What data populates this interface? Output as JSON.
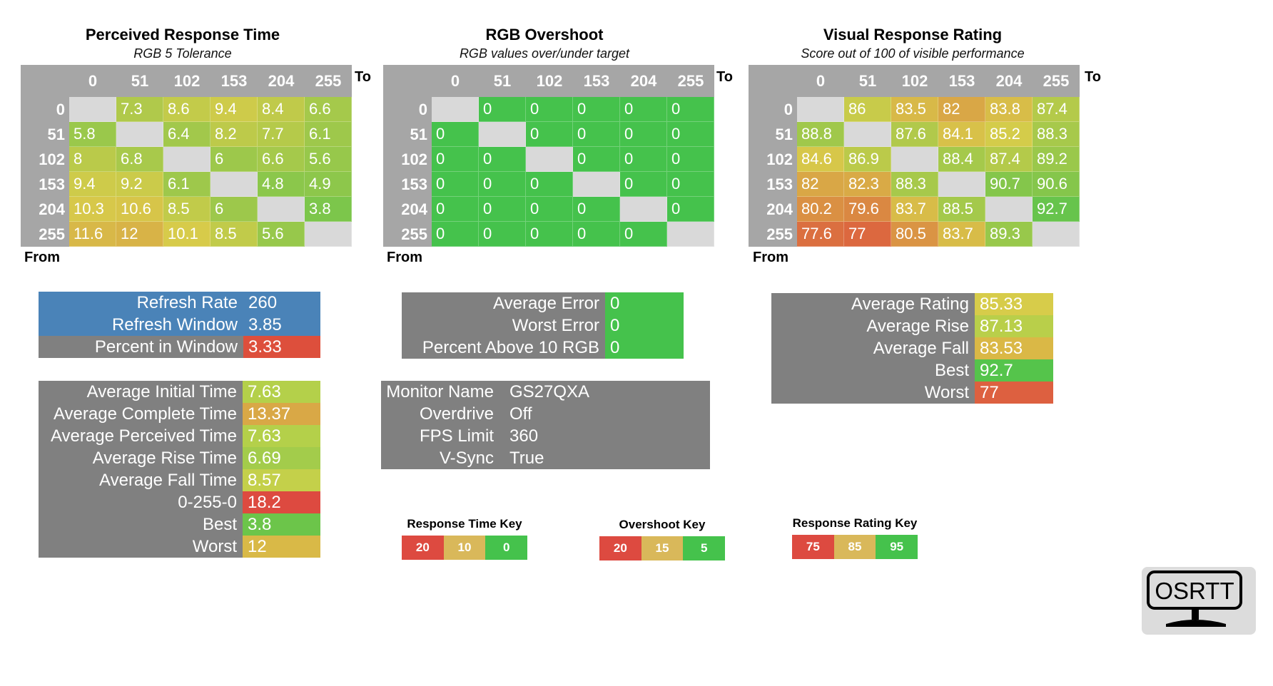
{
  "colors": {
    "heat_low": "#45c24c",
    "heat_mid": "#d7cc4a",
    "heat_high": "#dd4f3c",
    "diagonal": "#d9d9d9",
    "header_bg": "#a6a6a6",
    "panel_bg": "#808080",
    "refresh_blue": "#4a83b8"
  },
  "chart_data": [
    {
      "type": "heatmap",
      "title": "Perceived Response Time",
      "subtitle": "RGB 5 Tolerance",
      "xlabel": "To",
      "ylabel": "From",
      "x": [
        "0",
        "51",
        "102",
        "153",
        "204",
        "255"
      ],
      "y": [
        "0",
        "51",
        "102",
        "153",
        "204",
        "255"
      ],
      "values": [
        [
          "",
          "7.3",
          "8.6",
          "9.4",
          "8.4",
          "6.6"
        ],
        [
          "5.8",
          "",
          "6.4",
          "8.2",
          "7.7",
          "6.1"
        ],
        [
          "8",
          "6.8",
          "",
          "6",
          "6.6",
          "5.6"
        ],
        [
          "9.4",
          "9.2",
          "6.1",
          "",
          "4.8",
          "4.9"
        ],
        [
          "10.3",
          "10.6",
          "8.5",
          "6",
          "",
          "3.8"
        ],
        [
          "11.6",
          "12",
          "10.1",
          "8.5",
          "5.6",
          ""
        ]
      ],
      "color_scale": {
        "good": 0,
        "mid": 10,
        "bad": 20
      }
    },
    {
      "type": "heatmap",
      "title": "RGB Overshoot",
      "subtitle": "RGB values over/under target",
      "xlabel": "To",
      "ylabel": "From",
      "x": [
        "0",
        "51",
        "102",
        "153",
        "204",
        "255"
      ],
      "y": [
        "0",
        "51",
        "102",
        "153",
        "204",
        "255"
      ],
      "values": [
        [
          "",
          "0",
          "0",
          "0",
          "0",
          "0"
        ],
        [
          "0",
          "",
          "0",
          "0",
          "0",
          "0"
        ],
        [
          "0",
          "0",
          "",
          "0",
          "0",
          "0"
        ],
        [
          "0",
          "0",
          "0",
          "",
          "0",
          "0"
        ],
        [
          "0",
          "0",
          "0",
          "0",
          "",
          "0"
        ],
        [
          "0",
          "0",
          "0",
          "0",
          "0",
          ""
        ]
      ],
      "color_scale": {
        "good": 5,
        "mid": 15,
        "bad": 20
      }
    },
    {
      "type": "heatmap",
      "title": "Visual Response Rating",
      "subtitle": "Score out of 100 of visible performance",
      "xlabel": "To",
      "ylabel": "From",
      "x": [
        "0",
        "51",
        "102",
        "153",
        "204",
        "255"
      ],
      "y": [
        "0",
        "51",
        "102",
        "153",
        "204",
        "255"
      ],
      "values": [
        [
          "",
          "86",
          "83.5",
          "82",
          "83.8",
          "87.4"
        ],
        [
          "88.8",
          "",
          "87.6",
          "84.1",
          "85.2",
          "88.3"
        ],
        [
          "84.6",
          "86.9",
          "",
          "88.4",
          "87.4",
          "89.2"
        ],
        [
          "82",
          "82.3",
          "88.3",
          "",
          "90.7",
          "90.6"
        ],
        [
          "80.2",
          "79.6",
          "83.7",
          "88.5",
          "",
          "92.7"
        ],
        [
          "77.6",
          "77",
          "80.5",
          "83.7",
          "89.3",
          ""
        ]
      ],
      "color_scale": {
        "good": 95,
        "mid": 85,
        "bad": 75
      }
    }
  ],
  "refresh_panel": [
    {
      "label": "Refresh Rate",
      "value": "260",
      "color": "#4a83b8",
      "value_color": "#4a83b8"
    },
    {
      "label": "Refresh Window",
      "value": "3.85",
      "color": "#4a83b8",
      "value_color": "#4a83b8"
    },
    {
      "label": "Percent in Window",
      "value": "3.33",
      "color": "#808080",
      "value_color": "#dd4f3c"
    }
  ],
  "time_panel": [
    {
      "label": "Average Initial Time",
      "value": "7.63",
      "value_color": "#b4d04a"
    },
    {
      "label": "Average Complete Time",
      "value": "13.37",
      "value_color": "#d9a846"
    },
    {
      "label": "Average Perceived Time",
      "value": "7.63",
      "value_color": "#b4d04a"
    },
    {
      "label": "Average Rise Time",
      "value": "6.69",
      "value_color": "#a3cc4b"
    },
    {
      "label": "Average Fall Time",
      "value": "8.57",
      "value_color": "#c4d04a"
    },
    {
      "label": "0-255-0",
      "value": "18.2",
      "value_color": "#dd4a40"
    },
    {
      "label": "Best",
      "value": "3.8",
      "value_color": "#6cc54a"
    },
    {
      "label": "Worst",
      "value": "12",
      "value_color": "#d9b947"
    }
  ],
  "error_panel": [
    {
      "label": "Average Error",
      "value": "0",
      "value_color": "#45c24c"
    },
    {
      "label": "Worst Error",
      "value": "0",
      "value_color": "#45c24c"
    },
    {
      "label": "Percent Above 10 RGB",
      "value": "0",
      "value_color": "#45c24c"
    }
  ],
  "monitor_panel": [
    {
      "label": "Monitor Name",
      "value": "GS27QXA"
    },
    {
      "label": "Overdrive",
      "value": "Off"
    },
    {
      "label": "FPS Limit",
      "value": "360"
    },
    {
      "label": "V-Sync",
      "value": "True"
    }
  ],
  "rating_panel": [
    {
      "label": "Average Rating",
      "value": "85.33",
      "value_color": "#d7cc4a"
    },
    {
      "label": "Average Rise",
      "value": "87.13",
      "value_color": "#b9cf4a"
    },
    {
      "label": "Average Fall",
      "value": "83.53",
      "value_color": "#dab846"
    },
    {
      "label": "Best",
      "value": "92.7",
      "value_color": "#55c44b"
    },
    {
      "label": "Worst",
      "value": "77",
      "value_color": "#dd6040"
    }
  ],
  "keys": [
    {
      "title": "Response Time Key",
      "items": [
        {
          "label": "20",
          "color": "#dd4a40"
        },
        {
          "label": "10",
          "color": "#d9b85a"
        },
        {
          "label": "0",
          "color": "#45c24c"
        }
      ]
    },
    {
      "title": "Overshoot Key",
      "items": [
        {
          "label": "20",
          "color": "#dd4a40"
        },
        {
          "label": "15",
          "color": "#d9b85a"
        },
        {
          "label": "5",
          "color": "#45c24c"
        }
      ]
    },
    {
      "title": "Response Rating Key",
      "items": [
        {
          "label": "75",
          "color": "#dd4a40"
        },
        {
          "label": "85",
          "color": "#d9b85a"
        },
        {
          "label": "95",
          "color": "#45c24c"
        }
      ]
    }
  ],
  "logo_text": "OSRTT"
}
